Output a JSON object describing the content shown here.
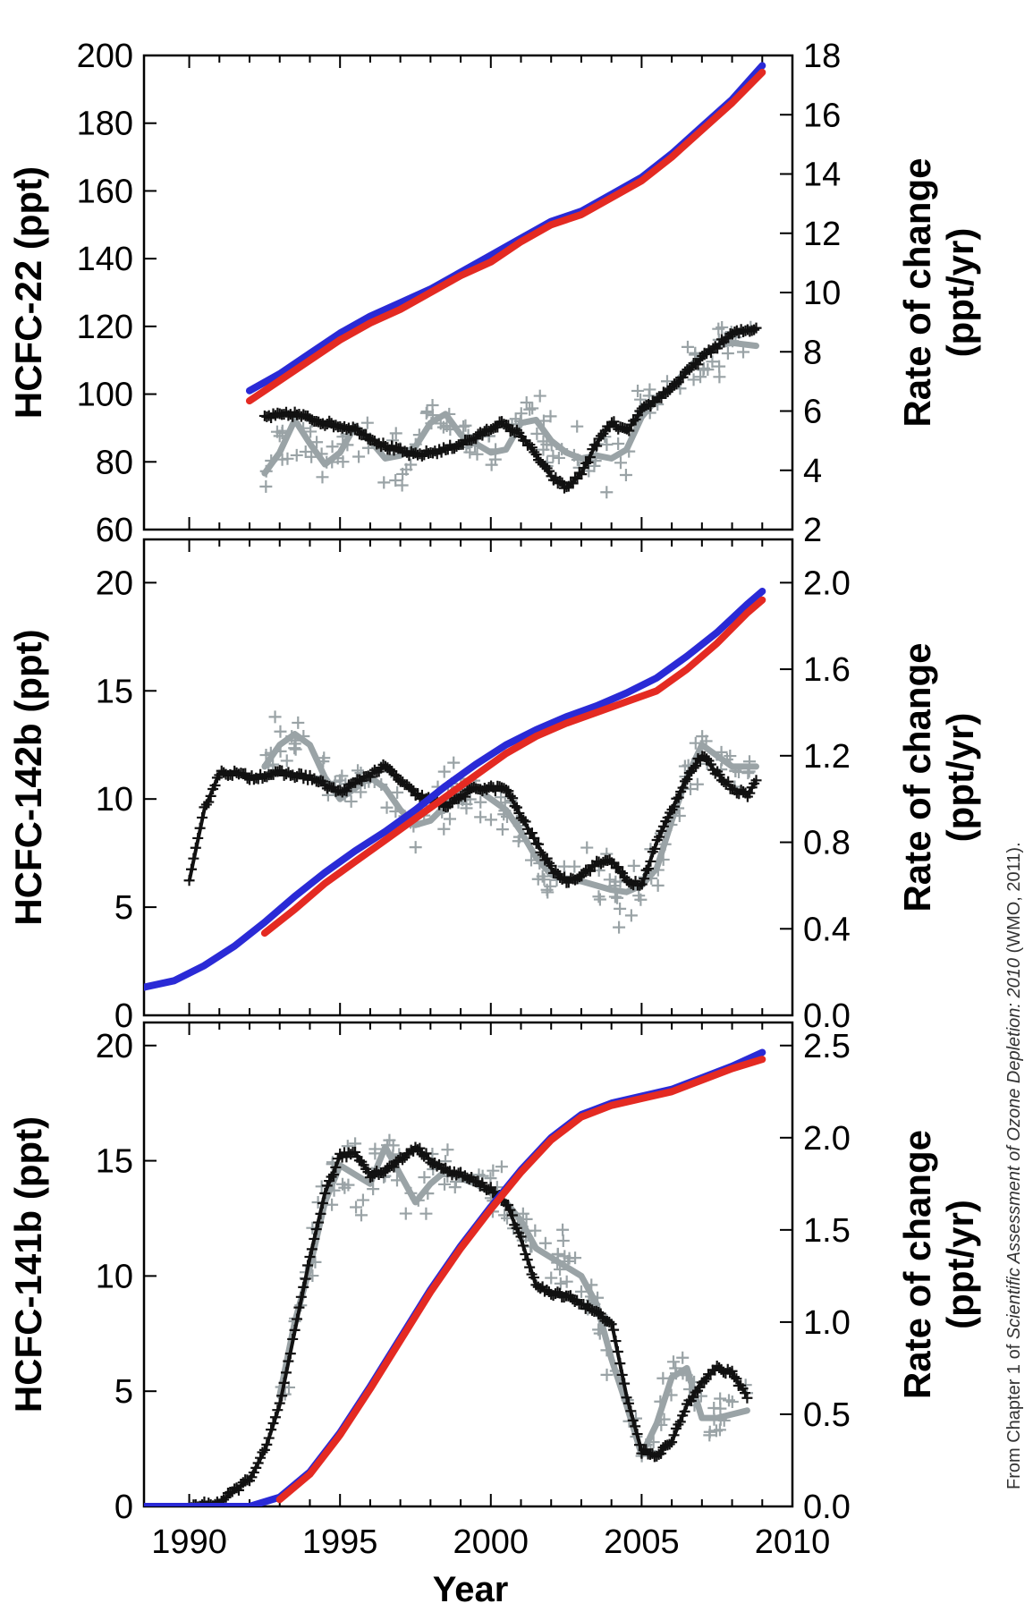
{
  "colors": {
    "agage": "#2a2ad6",
    "noaa": "#e42a22",
    "rate_agage": "#111111",
    "rate_noaa": "#9aa3a6"
  },
  "x_axis": {
    "label": "Year",
    "range": [
      1988.5,
      2010
    ],
    "ticks": [
      1990,
      1995,
      2000,
      2005,
      2010
    ]
  },
  "caption": {
    "prefix": "From Chapter 1 of ",
    "title": "Scientific Assessment of Ozone Depletion: 2010",
    "suffix": " (WMO, 2011)."
  },
  "chart_data": [
    {
      "type": "line",
      "ylabel": "HCFC-22 (ppt)",
      "ylabel_right": "Rate of change\n(ppt/yr)",
      "ylim": [
        60,
        200
      ],
      "yticks": [
        60,
        80,
        100,
        120,
        140,
        160,
        180,
        200
      ],
      "ylim_right": [
        2,
        18
      ],
      "yticks_right": [
        2,
        4,
        6,
        8,
        10,
        12,
        14,
        16,
        18
      ],
      "series": [
        {
          "role": "mixing_ratio_blue",
          "x": [
            1992.0,
            1993.0,
            1994.0,
            1995.0,
            1996.0,
            1997.0,
            1998.0,
            1999.0,
            2000.0,
            2001.0,
            2002.0,
            2003.0,
            2004.0,
            2005.0,
            2006.0,
            2007.0,
            2008.0,
            2009.0
          ],
          "y": [
            101,
            106,
            112,
            118,
            123,
            127,
            131,
            136,
            141,
            146,
            151,
            154,
            159,
            164,
            171,
            179,
            187,
            197
          ]
        },
        {
          "role": "mixing_ratio_red",
          "x": [
            1992.0,
            1993.0,
            1994.0,
            1995.0,
            1996.0,
            1997.0,
            1998.0,
            1999.0,
            2000.0,
            2001.0,
            2002.0,
            2003.0,
            2004.0,
            2005.0,
            2006.0,
            2007.0,
            2008.0,
            2009.0
          ],
          "y": [
            98,
            104,
            110,
            116,
            121,
            125,
            130,
            135,
            139,
            145,
            150,
            153,
            158,
            163,
            170,
            178,
            186,
            195
          ]
        },
        {
          "role": "rate_black",
          "x": [
            1992.5,
            1993.5,
            1994.5,
            1995.5,
            1996.5,
            1997.5,
            1998.5,
            1999.5,
            2000.3,
            2001.0,
            2002.0,
            2002.5,
            2003.0,
            2003.5,
            2004.0,
            2004.5,
            2005.0,
            2006.0,
            2007.0,
            2008.0,
            2008.8
          ],
          "y": [
            5.8,
            5.9,
            5.6,
            5.4,
            4.8,
            4.5,
            4.7,
            5.1,
            5.6,
            5.2,
            3.8,
            3.4,
            3.9,
            4.9,
            5.6,
            5.3,
            6.0,
            6.8,
            7.8,
            8.6,
            8.8
          ]
        },
        {
          "role": "rate_grey",
          "x": [
            1992.5,
            1993.0,
            1993.5,
            1994.0,
            1994.5,
            1995.0,
            1995.5,
            1996.0,
            1996.5,
            1997.0,
            1997.5,
            1998.0,
            1998.5,
            1999.0,
            1999.5,
            2000.0,
            2000.5,
            2001.0,
            2001.5,
            2002.0,
            2002.5,
            2003.0,
            2003.5,
            2004.0,
            2004.5,
            2005.0,
            2005.5,
            2006.0,
            2006.5,
            2007.0,
            2007.5,
            2008.0,
            2008.8
          ],
          "y": [
            3.9,
            4.6,
            5.7,
            4.9,
            4.2,
            4.6,
            5.5,
            5.0,
            4.4,
            4.5,
            4.8,
            5.6,
            5.9,
            5.2,
            4.9,
            4.6,
            4.7,
            5.6,
            5.7,
            5.0,
            4.6,
            4.4,
            4.5,
            4.4,
            4.7,
            5.8,
            6.4,
            6.8,
            7.4,
            7.9,
            8.2,
            8.3,
            8.2
          ]
        }
      ]
    },
    {
      "type": "line",
      "ylabel": "HCFC-142b (ppt)",
      "ylabel_right": "Rate of change\n(ppt/yr)",
      "ylim": [
        0,
        22
      ],
      "yticks": [
        0,
        5,
        10,
        15,
        20
      ],
      "ylim_right": [
        0.0,
        2.2
      ],
      "yticks_right": [
        "0.0",
        "0.4",
        "0.8",
        "1.2",
        "1.6",
        "2.0"
      ],
      "series": [
        {
          "role": "mixing_ratio_blue",
          "x": [
            1988.5,
            1989.5,
            1990.5,
            1991.5,
            1992.5,
            1993.5,
            1994.5,
            1995.5,
            1996.5,
            1997.5,
            1998.5,
            1999.5,
            2000.5,
            2001.5,
            2002.5,
            2003.5,
            2004.5,
            2005.5,
            2006.5,
            2007.5,
            2008.5,
            2009.0
          ],
          "y": [
            1.3,
            1.6,
            2.3,
            3.2,
            4.3,
            5.5,
            6.6,
            7.6,
            8.5,
            9.5,
            10.6,
            11.6,
            12.5,
            13.2,
            13.8,
            14.3,
            14.9,
            15.6,
            16.6,
            17.7,
            19.0,
            19.6
          ]
        },
        {
          "role": "mixing_ratio_red",
          "x": [
            1992.5,
            1993.5,
            1994.5,
            1995.5,
            1996.5,
            1997.5,
            1998.5,
            1999.5,
            2000.5,
            2001.5,
            2002.5,
            2003.5,
            2004.5,
            2005.5,
            2006.5,
            2007.5,
            2008.5,
            2009.0
          ],
          "y": [
            3.8,
            4.9,
            6.1,
            7.1,
            8.1,
            9.1,
            10.1,
            11.1,
            12.1,
            12.9,
            13.5,
            14.0,
            14.5,
            15.0,
            16.0,
            17.2,
            18.6,
            19.2
          ]
        },
        {
          "role": "rate_black",
          "x": [
            1990.0,
            1990.5,
            1991.0,
            1991.5,
            1992.0,
            1993.0,
            1994.0,
            1995.0,
            1995.8,
            1996.5,
            1997.5,
            1998.5,
            1999.5,
            2000.5,
            2001.0,
            2001.5,
            2002.0,
            2002.5,
            2003.0,
            2003.5,
            2004.0,
            2004.5,
            2005.0,
            2005.5,
            2006.0,
            2006.5,
            2007.0,
            2007.5,
            2008.0,
            2008.5,
            2008.8
          ],
          "y": [
            0.62,
            0.95,
            1.12,
            1.12,
            1.1,
            1.12,
            1.1,
            1.03,
            1.1,
            1.15,
            1.02,
            0.97,
            1.05,
            1.05,
            0.92,
            0.8,
            0.68,
            0.62,
            0.65,
            0.7,
            0.72,
            0.62,
            0.6,
            0.8,
            0.95,
            1.1,
            1.2,
            1.12,
            1.05,
            1.02,
            1.08
          ]
        },
        {
          "role": "rate_grey",
          "x": [
            1992.5,
            1993.0,
            1993.5,
            1994.0,
            1994.5,
            1995.0,
            1995.5,
            1996.0,
            1996.5,
            1997.0,
            1997.5,
            1998.0,
            1998.5,
            1999.0,
            1999.5,
            2000.0,
            2000.5,
            2001.0,
            2001.5,
            2002.0,
            2002.5,
            2003.0,
            2003.5,
            2004.0,
            2004.5,
            2005.0,
            2005.5,
            2006.0,
            2006.5,
            2007.0,
            2007.5,
            2008.0,
            2008.8
          ],
          "y": [
            1.15,
            1.25,
            1.3,
            1.25,
            1.1,
            1.0,
            1.05,
            1.1,
            1.05,
            0.95,
            0.88,
            0.9,
            0.97,
            1.05,
            1.05,
            1.0,
            0.95,
            0.85,
            0.73,
            0.65,
            0.63,
            0.62,
            0.6,
            0.58,
            0.57,
            0.6,
            0.68,
            0.9,
            1.1,
            1.25,
            1.2,
            1.15,
            1.15
          ]
        }
      ]
    },
    {
      "type": "line",
      "ylabel": "HCFC-141b (ppt)",
      "ylabel_right": "Rate of change\n(ppt/yr)",
      "ylim": [
        0,
        21
      ],
      "yticks": [
        0,
        5,
        10,
        15,
        20
      ],
      "ylim_right": [
        0.0,
        2.625
      ],
      "yticks_right": [
        "0.0",
        "0.5",
        "1.0",
        "1.5",
        "2.0",
        "2.5"
      ],
      "series": [
        {
          "role": "mixing_ratio_blue",
          "x": [
            1988.5,
            1992.0,
            1993.0,
            1994.0,
            1995.0,
            1996.0,
            1997.0,
            1998.0,
            1999.0,
            2000.0,
            2001.0,
            2002.0,
            2003.0,
            2004.0,
            2005.0,
            2006.0,
            2007.0,
            2008.0,
            2009.0
          ],
          "y": [
            0,
            0,
            0.4,
            1.5,
            3.2,
            5.2,
            7.3,
            9.4,
            11.3,
            13.0,
            14.6,
            16.0,
            17.0,
            17.5,
            17.8,
            18.1,
            18.6,
            19.1,
            19.7
          ]
        },
        {
          "role": "mixing_ratio_red",
          "x": [
            1993.0,
            1994.0,
            1995.0,
            1996.0,
            1997.0,
            1998.0,
            1999.0,
            2000.0,
            2001.0,
            2002.0,
            2003.0,
            2004.0,
            2005.0,
            2006.0,
            2007.0,
            2008.0,
            2009.0
          ],
          "y": [
            0.3,
            1.4,
            3.1,
            5.1,
            7.2,
            9.3,
            11.2,
            12.9,
            14.5,
            15.9,
            16.9,
            17.4,
            17.7,
            18.0,
            18.5,
            19.0,
            19.4
          ]
        },
        {
          "role": "rate_black",
          "x": [
            1990.0,
            1991.0,
            1992.0,
            1992.5,
            1993.0,
            1993.5,
            1994.0,
            1994.5,
            1995.0,
            1995.5,
            1996.0,
            1996.5,
            1997.0,
            1997.5,
            1998.0,
            1998.5,
            1999.0,
            2000.0,
            2000.5,
            2001.0,
            2001.5,
            2002.0,
            2002.5,
            2003.0,
            2003.5,
            2004.0,
            2004.5,
            2005.0,
            2005.5,
            2006.0,
            2006.5,
            2007.0,
            2007.5,
            2008.0,
            2008.5
          ],
          "y": [
            0.0,
            0.02,
            0.15,
            0.3,
            0.55,
            0.95,
            1.35,
            1.7,
            1.9,
            1.92,
            1.8,
            1.82,
            1.88,
            1.95,
            1.88,
            1.82,
            1.8,
            1.72,
            1.65,
            1.45,
            1.2,
            1.15,
            1.15,
            1.1,
            1.05,
            1.0,
            0.6,
            0.3,
            0.28,
            0.35,
            0.55,
            0.68,
            0.75,
            0.72,
            0.6
          ]
        },
        {
          "role": "rate_grey",
          "x": [
            1993.0,
            1993.5,
            1994.0,
            1994.5,
            1995.0,
            1995.5,
            1996.0,
            1996.5,
            1997.0,
            1997.5,
            1998.0,
            1998.5,
            1999.0,
            1999.5,
            2000.0,
            2000.5,
            2001.0,
            2001.5,
            2002.0,
            2002.5,
            2003.0,
            2003.5,
            2004.0,
            2004.5,
            2005.0,
            2005.5,
            2006.0,
            2006.5,
            2007.0,
            2007.5,
            2008.0,
            2008.5
          ],
          "y": [
            0.6,
            1.0,
            1.3,
            1.65,
            1.85,
            1.8,
            1.75,
            1.95,
            1.8,
            1.65,
            1.75,
            1.82,
            1.78,
            1.75,
            1.7,
            1.65,
            1.55,
            1.4,
            1.35,
            1.3,
            1.25,
            1.1,
            0.8,
            0.55,
            0.28,
            0.45,
            0.7,
            0.75,
            0.48,
            0.48,
            0.5,
            0.52
          ]
        }
      ]
    }
  ]
}
